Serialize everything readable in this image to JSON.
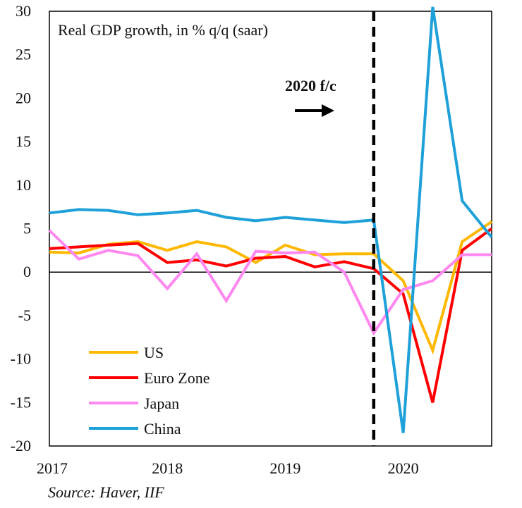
{
  "chart_data": {
    "type": "line",
    "title": "Real GDP growth, in % q/q (saar)",
    "forecast_label": "2020 f/c",
    "xlabel": "",
    "ylabel": "",
    "ylim": [
      -20,
      30
    ],
    "yticks": [
      30,
      25,
      20,
      15,
      10,
      5,
      0,
      -5,
      -10,
      -15,
      -20
    ],
    "year_labels": [
      "2017",
      "2018",
      "2019",
      "2020"
    ],
    "x": [
      "2017Q1",
      "2017Q2",
      "2017Q3",
      "2017Q4",
      "2018Q1",
      "2018Q2",
      "2018Q3",
      "2018Q4",
      "2019Q1",
      "2019Q2",
      "2019Q3",
      "2019Q4",
      "2020Q1",
      "2020Q2",
      "2020Q3",
      "2020Q4"
    ],
    "forecast_start_index": 11,
    "zero_line": true,
    "legend_position": "bottom-left",
    "series": [
      {
        "name": "US",
        "color": "#FFB800",
        "values": [
          2.3,
          2.2,
          3.2,
          3.5,
          2.5,
          3.5,
          2.9,
          1.1,
          3.1,
          2.0,
          2.1,
          2.1,
          -1.0,
          -9.0,
          3.5,
          5.8
        ]
      },
      {
        "name": "Euro Zone",
        "color": "#FF0000",
        "values": [
          2.7,
          2.9,
          3.1,
          3.3,
          1.1,
          1.4,
          0.7,
          1.6,
          1.8,
          0.6,
          1.2,
          0.4,
          -2.5,
          -15.0,
          2.5,
          5.0
        ]
      },
      {
        "name": "Japan",
        "color": "#FF88F0",
        "values": [
          4.8,
          1.5,
          2.5,
          1.9,
          -1.9,
          2.1,
          -3.3,
          2.4,
          2.2,
          2.3,
          0.0,
          -7.0,
          -2.0,
          -1.0,
          2.0,
          2.0
        ]
      },
      {
        "name": "China",
        "color": "#1EA0D8",
        "values": [
          6.8,
          7.2,
          7.1,
          6.6,
          6.8,
          7.1,
          6.3,
          5.9,
          6.3,
          6.0,
          5.7,
          6.0,
          -18.5,
          30.5,
          8.2,
          4.0
        ]
      }
    ]
  }
}
